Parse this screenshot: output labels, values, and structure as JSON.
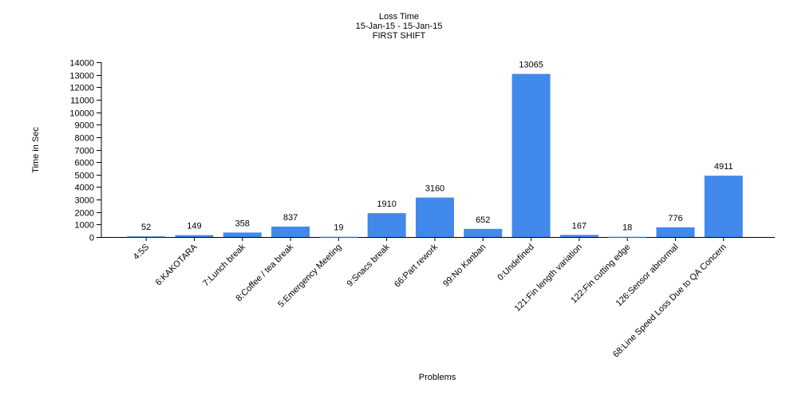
{
  "chart_data": {
    "type": "bar",
    "title": "Loss Time",
    "subtitle": [
      "15-Jan-15 - 15-Jan-15",
      "FIRST SHIFT"
    ],
    "xlabel": "Problems",
    "ylabel": "Time in Sec",
    "ylim": [
      0,
      14000
    ],
    "ytick_step": 1000,
    "yticks": [
      "0",
      "1000",
      "2000",
      "3000",
      "4000",
      "5000",
      "6000",
      "7000",
      "8000",
      "9000",
      "10000",
      "11000",
      "12000",
      "13000",
      "14000"
    ],
    "categories": [
      "4:5S",
      "6:KAKOTARA",
      "7:Lunch break",
      "8:Coffee / tea break",
      "5:Emergency Meeting",
      "9:Snacs break",
      "66:Part rework",
      "99:No Kanban",
      "0:Undefined",
      "121:Fin length variation",
      "122:Fin cutting edge",
      "126:Sensor abnormal",
      "68:Line Speed Loss Due to QA Concern"
    ],
    "values": [
      52,
      149,
      358,
      837,
      19,
      1910,
      3160,
      652,
      13065,
      167,
      18,
      776,
      4911
    ],
    "data_labels": [
      "52",
      "149",
      "358",
      "837",
      "19",
      "1910",
      "3160",
      "652",
      "13065",
      "167",
      "18",
      "776",
      "4911"
    ],
    "bar_color": "#4189ea",
    "grid": false,
    "legend": "none"
  }
}
